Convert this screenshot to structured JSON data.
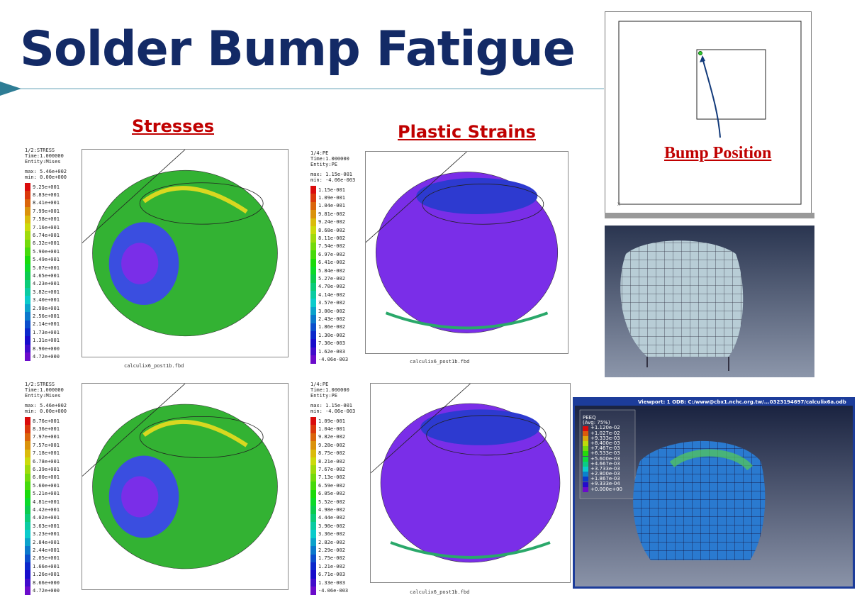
{
  "title": "Solder Bump Fatigue",
  "sections": {
    "stresses": "Stresses",
    "plastic_strains": "Plastic Strains"
  },
  "bump_position": "Bump Position",
  "panels": [
    {
      "header": [
        "1/2:STRESS",
        "Time:1.000000",
        "Entity:Mises",
        "max: 5.46e+002",
        "min: 0.00e+000"
      ],
      "levels": [
        "9.25e+001",
        "8.83e+001",
        "8.41e+001",
        "7.99e+001",
        "7.58e+001",
        "7.16e+001",
        "6.74e+001",
        "6.32e+001",
        "5.90e+001",
        "5.49e+001",
        "5.07e+001",
        "4.65e+001",
        "4.23e+001",
        "3.82e+001",
        "3.40e+001",
        "2.98e+001",
        "2.56e+001",
        "2.14e+001",
        "1.73e+001",
        "1.31e+001",
        "8.90e+000",
        "4.72e+000"
      ],
      "footer": "calculix6_post1b.fbd"
    },
    {
      "header": [
        "1/4:PE",
        "Time:1.000000",
        "Entity:PE",
        "max: 1.15e-001",
        "min: -4.06e-003"
      ],
      "levels": [
        "1.15e-001",
        "1.09e-001",
        "1.04e-001",
        "9.81e-002",
        "9.24e-002",
        "8.68e-002",
        "8.11e-002",
        "7.54e-002",
        "6.97e-002",
        "6.41e-002",
        "5.84e-002",
        "5.27e-002",
        "4.70e-002",
        "4.14e-002",
        "3.57e-002",
        "3.00e-002",
        "2.43e-002",
        "1.86e-002",
        "1.30e-002",
        "7.30e-003",
        "1.62e-003",
        "-4.06e-003"
      ],
      "footer": "calculix6_post1b.fbd"
    },
    {
      "header": [
        "1/2:STRESS",
        "Time:1.000000",
        "Entity:Mises",
        "max: 5.46e+002",
        "min: 0.00e+000"
      ],
      "levels": [
        "8.76e+001",
        "8.36e+001",
        "7.97e+001",
        "7.57e+001",
        "7.18e+001",
        "6.78e+001",
        "6.39e+001",
        "6.00e+001",
        "5.60e+001",
        "5.21e+001",
        "4.81e+001",
        "4.42e+001",
        "4.02e+001",
        "3.63e+001",
        "3.23e+001",
        "2.84e+001",
        "2.44e+001",
        "2.05e+001",
        "1.66e+001",
        "1.26e+001",
        "8.66e+000",
        "4.72e+000"
      ]
    },
    {
      "header": [
        "1/4:PE",
        "Time:1.000000",
        "Entity:PE",
        "max: 1.15e-001",
        "min: -4.06e-003"
      ],
      "levels": [
        "1.09e-001",
        "1.04e-001",
        "9.82e-002",
        "9.28e-002",
        "8.75e-002",
        "8.21e-002",
        "7.67e-002",
        "7.13e-002",
        "6.59e-002",
        "6.05e-002",
        "5.52e-002",
        "4.98e-002",
        "4.44e-002",
        "3.90e-002",
        "3.36e-002",
        "2.82e-002",
        "2.29e-002",
        "1.75e-002",
        "1.21e-002",
        "6.71e-003",
        "1.33e-003",
        "-4.06e-003"
      ],
      "footer": "calculix6_post1b.fbd"
    }
  ],
  "abaqus": {
    "viewport": "Viewport: 1    ODB: C:/www@cbx1.nchc.org.tw/...0323194697/calculix6a.odb",
    "legend_title": [
      "PEEQ",
      "(Avg: 75%)"
    ],
    "levels": [
      "+1.120e-02",
      "+1.027e-02",
      "+9.333e-03",
      "+8.400e-03",
      "+7.467e-03",
      "+6.533e-03",
      "+5.600e-03",
      "+4.667e-03",
      "+3.733e-03",
      "+2.800e-03",
      "+1.867e-03",
      "+9.333e-04",
      "+0.000e+00"
    ]
  }
}
